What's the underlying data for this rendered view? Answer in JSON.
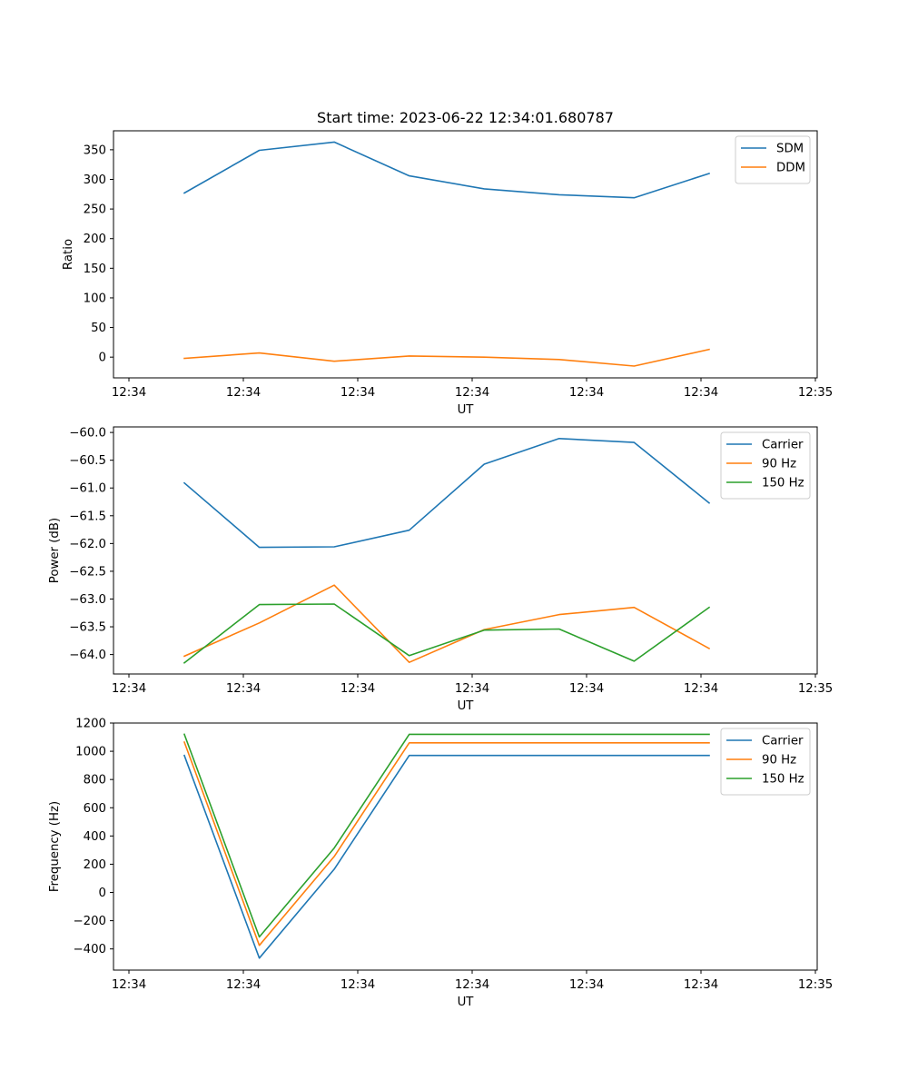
{
  "chart_data": [
    {
      "type": "line",
      "title": "Start time: 2023-06-22 12:34:01.680787",
      "xlabel": "UT",
      "ylabel": "Ratio",
      "x_tick_labels": [
        "12:34",
        "12:34",
        "12:34",
        "12:34",
        "12:34",
        "12:34",
        "12:34",
        "12:35"
      ],
      "y_ticks": [
        0,
        50,
        100,
        150,
        200,
        250,
        300,
        350
      ],
      "ylim": [
        -35,
        382
      ],
      "legend_position": "top-right",
      "x_samples": 8,
      "series": [
        {
          "name": "SDM",
          "color": "#1f77b4",
          "values": [
            277,
            349,
            363,
            306,
            284,
            274,
            269,
            310
          ]
        },
        {
          "name": "DDM",
          "color": "#ff7f0e",
          "values": [
            -2,
            7,
            -7,
            2,
            0,
            -4,
            -15,
            13
          ]
        }
      ]
    },
    {
      "type": "line",
      "title": "",
      "xlabel": "UT",
      "ylabel": "Power (dB)",
      "x_tick_labels": [
        "12:34",
        "12:34",
        "12:34",
        "12:34",
        "12:34",
        "12:34",
        "12:34",
        "12:35"
      ],
      "y_ticks": [
        -64.0,
        -63.5,
        -63.0,
        -62.5,
        -62.0,
        -61.5,
        -61.0,
        -60.5,
        -60.0
      ],
      "y_tick_labels": [
        "−64.0",
        "−63.5",
        "−63.0",
        "−62.5",
        "−62.0",
        "−61.5",
        "−61.0",
        "−60.5",
        "−60.0"
      ],
      "ylim": [
        -64.35,
        -59.9
      ],
      "legend_position": "top-right",
      "x_samples": 8,
      "series": [
        {
          "name": "Carrier",
          "color": "#1f77b4",
          "values": [
            -60.91,
            -62.07,
            -62.06,
            -61.76,
            -60.57,
            -60.11,
            -60.18,
            -61.27
          ]
        },
        {
          "name": "90 Hz",
          "color": "#ff7f0e",
          "values": [
            -64.03,
            -63.43,
            -62.75,
            -64.14,
            -63.55,
            -63.28,
            -63.15,
            -63.89
          ]
        },
        {
          "name": "150 Hz",
          "color": "#2ca02c",
          "values": [
            -64.15,
            -63.1,
            -63.09,
            -64.02,
            -63.56,
            -63.54,
            -64.12,
            -63.15
          ]
        }
      ]
    },
    {
      "type": "line",
      "title": "",
      "xlabel": "UT",
      "ylabel": "Frequency (Hz)",
      "x_tick_labels": [
        "12:34",
        "12:34",
        "12:34",
        "12:34",
        "12:34",
        "12:34",
        "12:34",
        "12:35"
      ],
      "y_ticks": [
        -400,
        -200,
        0,
        200,
        400,
        600,
        800,
        1000,
        1200
      ],
      "y_tick_labels": [
        "−400",
        "−200",
        "0",
        "200",
        "400",
        "600",
        "800",
        "1000",
        "1200"
      ],
      "ylim": [
        -550,
        1200
      ],
      "legend_position": "top-right",
      "x_samples": 8,
      "series": [
        {
          "name": "Carrier",
          "color": "#1f77b4",
          "values": [
            970,
            -465,
            165,
            970,
            970,
            970,
            970,
            970
          ]
        },
        {
          "name": "90 Hz",
          "color": "#ff7f0e",
          "values": [
            1065,
            -375,
            255,
            1060,
            1060,
            1060,
            1060,
            1060
          ]
        },
        {
          "name": "150 Hz",
          "color": "#2ca02c",
          "values": [
            1120,
            -315,
            315,
            1120,
            1120,
            1120,
            1120,
            1120
          ]
        }
      ]
    }
  ]
}
